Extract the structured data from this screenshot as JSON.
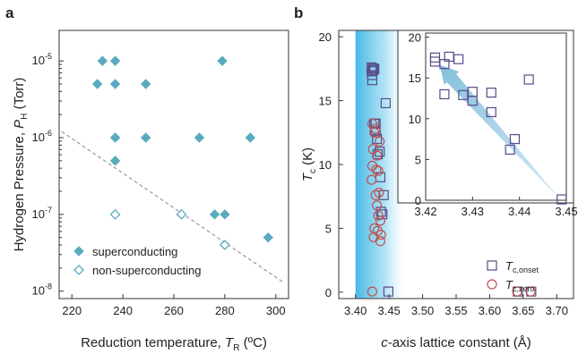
{
  "chart_data": [
    {
      "panel_label": "a",
      "type": "scatter",
      "xlabel_main": "Reduction temperature, ",
      "xlabel_sym": "T",
      "xlabel_sub": "R",
      "xlabel_unit": " (ºC)",
      "ylabel_main": "Hydrogen Pressure, ",
      "ylabel_sym": "P",
      "ylabel_sub": "H",
      "ylabel_unit": " (Torr)",
      "x_scale": "linear",
      "y_scale": "log",
      "xlim": [
        215,
        305
      ],
      "ylim": [
        8e-09,
        2.5e-05
      ],
      "x_ticks": [
        "220",
        "240",
        "260",
        "280",
        "300"
      ],
      "y_ticks": [
        {
          "base": "10",
          "exp": "-8"
        },
        {
          "base": "10",
          "exp": "-7"
        },
        {
          "base": "10",
          "exp": "-6"
        },
        {
          "base": "10",
          "exp": "-5"
        }
      ],
      "legend_position": "bottom-left",
      "series": [
        {
          "name": "superconducting",
          "marker": "filled-diamond",
          "color": "#5aaabf",
          "points": [
            [
              230,
              5e-06
            ],
            [
              232,
              1e-05
            ],
            [
              237,
              1e-05
            ],
            [
              237,
              5e-06
            ],
            [
              249,
              5e-06
            ],
            [
              279,
              1e-05
            ],
            [
              237,
              1e-06
            ],
            [
              249,
              1e-06
            ],
            [
              270,
              1e-06
            ],
            [
              290,
              1e-06
            ],
            [
              237,
              5e-07
            ],
            [
              276,
              1e-07
            ],
            [
              280,
              1e-07
            ],
            [
              297,
              5e-08
            ]
          ]
        },
        {
          "name": "non-superconducting",
          "marker": "open-diamond",
          "color": "#5aaabf",
          "points": [
            [
              237,
              1e-07
            ],
            [
              263,
              1e-07
            ],
            [
              280,
              4e-08
            ]
          ]
        }
      ],
      "guide_line": {
        "style": "dashed",
        "color": "#999999",
        "from": [
          216,
          1.2e-06
        ],
        "to": [
          303,
          1.3e-08
        ]
      }
    },
    {
      "panel_label": "b",
      "type": "scatter",
      "xlabel_italic": "c",
      "xlabel_rest": "-axis lattice constant (Å)",
      "ylabel_sym": "T",
      "ylabel_sub": "c",
      "ylabel_unit": " (K)",
      "xlim": [
        3.375,
        3.725
      ],
      "ylim": [
        -0.5,
        20.5
      ],
      "x_ticks": [
        "3.40",
        "3.45",
        "3.50",
        "3.55",
        "3.60",
        "3.65",
        "3.70"
      ],
      "y_ticks": [
        "0",
        "5",
        "10",
        "15",
        "20"
      ],
      "highlight_band": {
        "from": 3.4,
        "to": 3.48,
        "color": "#5bc0e6"
      },
      "legend_position": "bottom-right",
      "series": [
        {
          "name_sym": "T",
          "name_sub": "c,onset",
          "marker": "open-square",
          "color": "#5a4a8a",
          "points": [
            [
              3.424,
              17.6
            ],
            [
              3.424,
              17.3
            ],
            [
              3.426,
              17.5
            ],
            [
              3.425,
              17.0
            ],
            [
              3.427,
              17.4
            ],
            [
              3.425,
              16.6
            ],
            [
              3.428,
              17.5
            ],
            [
              3.428,
              13.2
            ],
            [
              3.43,
              13.2
            ],
            [
              3.432,
              12.0
            ],
            [
              3.433,
              10.8
            ],
            [
              3.437,
              9.0
            ],
            [
              3.438,
              6.3
            ],
            [
              3.442,
              7.6
            ],
            [
              3.445,
              14.8
            ],
            [
              3.449,
              0.05
            ],
            [
              3.43,
              12.6
            ],
            [
              3.436,
              11.0
            ],
            [
              3.44,
              6.1
            ]
          ]
        },
        {
          "name_sym": "T",
          "name_sub": "c,zero",
          "marker": "open-circle",
          "color": "#c0504d",
          "points": [
            [
              3.425,
              13.2
            ],
            [
              3.43,
              12.8
            ],
            [
              3.428,
              12.5
            ],
            [
              3.426,
              11.2
            ],
            [
              3.432,
              10.7
            ],
            [
              3.425,
              9.9
            ],
            [
              3.431,
              9.6
            ],
            [
              3.434,
              9.5
            ],
            [
              3.436,
              11.8
            ],
            [
              3.424,
              8.8
            ],
            [
              3.435,
              7.8
            ],
            [
              3.43,
              7.6
            ],
            [
              3.432,
              6.8
            ],
            [
              3.434,
              6.0
            ],
            [
              3.437,
              5.6
            ],
            [
              3.428,
              5.0
            ],
            [
              3.433,
              4.8
            ],
            [
              3.438,
              4.5
            ],
            [
              3.427,
              4.3
            ],
            [
              3.437,
              4.0
            ],
            [
              3.425,
              0.05
            ]
          ]
        },
        {
          "name": "onset-high-a",
          "marker": "open-square",
          "color": "#5a4a8a",
          "points": [
            [
              3.642,
              0.05
            ],
            [
              3.662,
              0.05
            ]
          ]
        },
        {
          "name": "zero-high-a",
          "marker": "open-circle",
          "color": "#c0504d",
          "points": [
            [
              3.641,
              0.05
            ],
            [
              3.661,
              0.05
            ]
          ]
        }
      ],
      "inset": {
        "xlim": [
          3.42,
          3.45
        ],
        "ylim": [
          0,
          20.5
        ],
        "x_ticks": [
          "3.42",
          "3.43",
          "3.44",
          "3.45"
        ],
        "y_ticks": [
          "0",
          "5",
          "10",
          "15",
          "20"
        ],
        "arrow": {
          "from": [
            3.4485,
            0.2
          ],
          "to": [
            3.423,
            16.6
          ],
          "color": "#8bc3dd"
        },
        "points": [
          [
            3.422,
            17.5
          ],
          [
            3.422,
            17.0
          ],
          [
            3.424,
            16.7
          ],
          [
            3.425,
            17.6
          ],
          [
            3.427,
            17.3
          ],
          [
            3.424,
            13.0
          ],
          [
            3.428,
            12.9
          ],
          [
            3.43,
            13.3
          ],
          [
            3.43,
            12.2
          ],
          [
            3.434,
            13.2
          ],
          [
            3.434,
            10.8
          ],
          [
            3.438,
            6.2
          ],
          [
            3.439,
            7.5
          ],
          [
            3.442,
            14.8
          ],
          [
            3.449,
            0.1
          ]
        ]
      }
    }
  ]
}
